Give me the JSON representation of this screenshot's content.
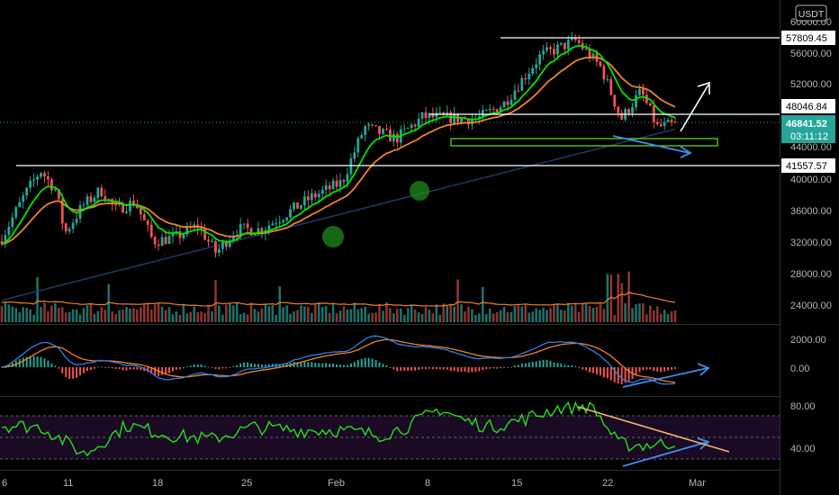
{
  "app": {
    "currency": "USDT"
  },
  "price_pane": {
    "y_ticks": [
      "24000.00",
      "28000.00",
      "32000.00",
      "36000.00",
      "40000.00",
      "44000.00",
      "52000.00",
      "56000.00",
      "60000.00"
    ],
    "price_labels": [
      {
        "text": "57809.45",
        "value": 57809.45,
        "kind": "level"
      },
      {
        "text": "48046.84",
        "value": 48046.84,
        "kind": "level"
      },
      {
        "text": "41557.57",
        "value": 41557.57,
        "kind": "level"
      },
      {
        "text": "46841.52",
        "value": 46841.52,
        "kind": "current"
      }
    ],
    "countdown": "03:11:12",
    "colors": {
      "up": "#26a69a",
      "down": "#ef5350",
      "ema_fast": "#00e600",
      "ema_slow": "#f0812a",
      "ma_long": "#1f3a66",
      "volume_ma": "#f0812a",
      "current_price": "#26a69a"
    }
  },
  "macd_pane": {
    "y_ticks": [
      "2000.00",
      "0.00"
    ],
    "colors": {
      "macd": "#2f7fe6",
      "signal": "#f0812a"
    }
  },
  "rsi_pane": {
    "y_ticks": [
      "80.00",
      "40.00"
    ],
    "colors": {
      "rsi": "#22e01a",
      "band": "#1a0a24"
    }
  },
  "x_axis": {
    "ticks": [
      "6",
      "11",
      "18",
      "25",
      "Feb",
      "8",
      "15",
      "22",
      "Mar"
    ]
  },
  "chart_data": {
    "type": "candlestick",
    "title": "",
    "y_range_price": [
      22000,
      61000
    ],
    "horizontal_levels": [
      57809.45,
      48046.84,
      41557.57
    ],
    "current_price": 46841.52,
    "price_path": [
      [
        "Jan 4",
        32000
      ],
      [
        "Jan 6",
        38000
      ],
      [
        "Jan 8",
        41000
      ],
      [
        "Jan 10",
        38500
      ],
      [
        "Jan 11",
        33000
      ],
      [
        "Jan 13",
        36500
      ],
      [
        "Jan 15",
        38500
      ],
      [
        "Jan 17",
        36000
      ],
      [
        "Jan 19",
        37000
      ],
      [
        "Jan 21",
        32000
      ],
      [
        "Jan 23",
        32500
      ],
      [
        "Jan 25",
        34000
      ],
      [
        "Jan 27",
        30500
      ],
      [
        "Jan 29",
        33500
      ],
      [
        "Jan 31",
        33500
      ],
      [
        "Feb 2",
        35500
      ],
      [
        "Feb 4",
        37500
      ],
      [
        "Feb 6",
        39500
      ],
      [
        "Feb 8",
        46500
      ],
      [
        "Feb 10",
        45000
      ],
      [
        "Feb 12",
        47800
      ],
      [
        "Feb 15",
        47500
      ],
      [
        "Feb 17",
        49500
      ],
      [
        "Feb 19",
        55500
      ],
      [
        "Feb 21",
        57500
      ],
      [
        "Feb 22",
        54000
      ],
      [
        "Feb 23",
        47500
      ],
      [
        "Feb 25",
        51000
      ],
      [
        "Feb 27",
        46500
      ],
      [
        "Feb 28",
        46842
      ]
    ],
    "macd_range": [
      -2500,
      3000
    ],
    "rsi_range": [
      20,
      90
    ],
    "rsi_path": [
      [
        0,
        62
      ],
      [
        5,
        60
      ],
      [
        10,
        33
      ],
      [
        15,
        62
      ],
      [
        20,
        52
      ],
      [
        25,
        48
      ],
      [
        30,
        60
      ],
      [
        35,
        57
      ],
      [
        40,
        57
      ],
      [
        45,
        52
      ],
      [
        48,
        60
      ],
      [
        52,
        78
      ],
      [
        55,
        66
      ],
      [
        58,
        60
      ],
      [
        62,
        68
      ],
      [
        66,
        79
      ],
      [
        70,
        81
      ],
      [
        73,
        44
      ],
      [
        75,
        42
      ],
      [
        78,
        43
      ],
      [
        80,
        45
      ]
    ],
    "annotations": [
      "support box 44000-45000",
      "arrow up",
      "descending arrows (divergence)",
      "green circles marking EMA crossovers"
    ]
  }
}
